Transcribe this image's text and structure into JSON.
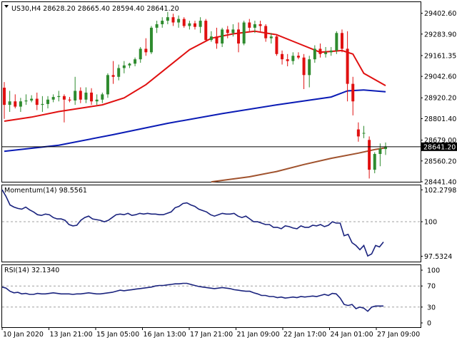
{
  "colors": {
    "background": "#ffffff",
    "bull": "#2e8b2e",
    "bear": "#e01010",
    "ema_fast": "#e01010",
    "ema_slow": "#0a1bb5",
    "ema_long": "#a0522d",
    "indicator": "#1a237e",
    "grid_dash": "#a0a0a0",
    "price_line": "#000000"
  },
  "chart_data": [
    {
      "type": "candlestick",
      "title": "US30,H4  28628.20 28665.40 28594.40 28641.20",
      "symbol": "US30,H4",
      "ohlc_header": "28628.20 28665.40 28594.40 28641.20",
      "current_price": "28641.20",
      "ylim": [
        28441.41,
        29466.0
      ],
      "y_ticks": [
        "29402.60",
        "29283.90",
        "29161.35",
        "29042.60",
        "28920.20",
        "28801.40",
        "28679.00",
        "28560.20",
        "28441.40"
      ],
      "x_tick_labels": [
        "10 Jan 2020",
        "13 Jan 21:00",
        "15 Jan 05:00",
        "16 Jan 13:00",
        "17 Jan 21:00",
        "21 Jan 09:00",
        "22 Jan 17:00",
        "24 Jan 01:00",
        "27 Jan 09:00"
      ],
      "candles": [
        {
          "o": 28978,
          "h": 29010,
          "l": 28800,
          "c": 28880
        },
        {
          "o": 28880,
          "h": 28960,
          "l": 28840,
          "c": 28900
        },
        {
          "o": 28900,
          "h": 28940,
          "l": 28860,
          "c": 28870
        },
        {
          "o": 28870,
          "h": 28920,
          "l": 28840,
          "c": 28900
        },
        {
          "o": 28900,
          "h": 28940,
          "l": 28880,
          "c": 28905
        },
        {
          "o": 28905,
          "h": 28935,
          "l": 28895,
          "c": 28915
        },
        {
          "o": 28915,
          "h": 28950,
          "l": 28850,
          "c": 28880
        },
        {
          "o": 28880,
          "h": 28930,
          "l": 28840,
          "c": 28885
        },
        {
          "o": 28885,
          "h": 28930,
          "l": 28860,
          "c": 28910
        },
        {
          "o": 28910,
          "h": 28940,
          "l": 28895,
          "c": 28925
        },
        {
          "o": 28925,
          "h": 28960,
          "l": 28900,
          "c": 28930
        },
        {
          "o": 28930,
          "h": 28940,
          "l": 28780,
          "c": 28910
        },
        {
          "o": 28910,
          "h": 28925,
          "l": 28895,
          "c": 28905
        },
        {
          "o": 28905,
          "h": 29040,
          "l": 28880,
          "c": 28960
        },
        {
          "o": 28960,
          "h": 28980,
          "l": 28890,
          "c": 28910
        },
        {
          "o": 28910,
          "h": 28980,
          "l": 28890,
          "c": 28950
        },
        {
          "o": 28950,
          "h": 28975,
          "l": 28880,
          "c": 28900
        },
        {
          "o": 28900,
          "h": 28940,
          "l": 28880,
          "c": 28910
        },
        {
          "o": 28910,
          "h": 28950,
          "l": 28890,
          "c": 28940
        },
        {
          "o": 28940,
          "h": 29060,
          "l": 28920,
          "c": 29050
        },
        {
          "o": 29050,
          "h": 29130,
          "l": 29000,
          "c": 29040
        },
        {
          "o": 29040,
          "h": 29110,
          "l": 29020,
          "c": 29090
        },
        {
          "o": 29090,
          "h": 29130,
          "l": 29060,
          "c": 29105
        },
        {
          "o": 29105,
          "h": 29120,
          "l": 29090,
          "c": 29115
        },
        {
          "o": 29115,
          "h": 29150,
          "l": 29100,
          "c": 29140
        },
        {
          "o": 29140,
          "h": 29210,
          "l": 29120,
          "c": 29200
        },
        {
          "o": 29200,
          "h": 29260,
          "l": 29160,
          "c": 29180
        },
        {
          "o": 29180,
          "h": 29330,
          "l": 29170,
          "c": 29320
        },
        {
          "o": 29320,
          "h": 29360,
          "l": 29290,
          "c": 29340
        },
        {
          "o": 29340,
          "h": 29380,
          "l": 29320,
          "c": 29360
        },
        {
          "o": 29360,
          "h": 29410,
          "l": 29340,
          "c": 29380
        },
        {
          "o": 29380,
          "h": 29400,
          "l": 29330,
          "c": 29350
        },
        {
          "o": 29350,
          "h": 29390,
          "l": 29320,
          "c": 29370
        },
        {
          "o": 29370,
          "h": 29380,
          "l": 29320,
          "c": 29330
        },
        {
          "o": 29330,
          "h": 29360,
          "l": 29310,
          "c": 29345
        },
        {
          "o": 29345,
          "h": 29360,
          "l": 29310,
          "c": 29325
        },
        {
          "o": 29325,
          "h": 29380,
          "l": 29290,
          "c": 29360
        },
        {
          "o": 29360,
          "h": 29370,
          "l": 29240,
          "c": 29250
        },
        {
          "o": 29250,
          "h": 29300,
          "l": 29240,
          "c": 29270
        },
        {
          "o": 29270,
          "h": 29320,
          "l": 29200,
          "c": 29230
        },
        {
          "o": 29230,
          "h": 29320,
          "l": 29210,
          "c": 29310
        },
        {
          "o": 29310,
          "h": 29330,
          "l": 29260,
          "c": 29290
        },
        {
          "o": 29290,
          "h": 29340,
          "l": 29270,
          "c": 29310
        },
        {
          "o": 29310,
          "h": 29350,
          "l": 29180,
          "c": 29230
        },
        {
          "o": 29230,
          "h": 29360,
          "l": 29220,
          "c": 29350
        },
        {
          "o": 29350,
          "h": 29370,
          "l": 29300,
          "c": 29320
        },
        {
          "o": 29320,
          "h": 29360,
          "l": 29290,
          "c": 29340
        },
        {
          "o": 29340,
          "h": 29360,
          "l": 29300,
          "c": 29330
        },
        {
          "o": 29330,
          "h": 29340,
          "l": 29240,
          "c": 29260
        },
        {
          "o": 29260,
          "h": 29290,
          "l": 29230,
          "c": 29270
        },
        {
          "o": 29270,
          "h": 29280,
          "l": 29160,
          "c": 29170
        },
        {
          "o": 29170,
          "h": 29190,
          "l": 29110,
          "c": 29140
        },
        {
          "o": 29140,
          "h": 29170,
          "l": 29100,
          "c": 29130
        },
        {
          "o": 29130,
          "h": 29180,
          "l": 29110,
          "c": 29160
        },
        {
          "o": 29160,
          "h": 29180,
          "l": 29140,
          "c": 29150
        },
        {
          "o": 29150,
          "h": 29170,
          "l": 28970,
          "c": 29050
        },
        {
          "o": 29050,
          "h": 29160,
          "l": 28980,
          "c": 29140
        },
        {
          "o": 29140,
          "h": 29220,
          "l": 29120,
          "c": 29200
        },
        {
          "o": 29200,
          "h": 29230,
          "l": 29150,
          "c": 29170
        },
        {
          "o": 29170,
          "h": 29210,
          "l": 29150,
          "c": 29180
        },
        {
          "o": 29180,
          "h": 29210,
          "l": 29160,
          "c": 29190
        },
        {
          "o": 29190,
          "h": 29300,
          "l": 29170,
          "c": 29290
        },
        {
          "o": 29290,
          "h": 29310,
          "l": 29180,
          "c": 29200
        },
        {
          "o": 29200,
          "h": 29300,
          "l": 28900,
          "c": 29000
        },
        {
          "o": 29000,
          "h": 29040,
          "l": 28820,
          "c": 28900
        },
        {
          "o": 28740,
          "h": 28780,
          "l": 28670,
          "c": 28700
        },
        {
          "o": 28720,
          "h": 28760,
          "l": 28690,
          "c": 28720
        },
        {
          "o": 28680,
          "h": 28700,
          "l": 28460,
          "c": 28510
        },
        {
          "o": 28510,
          "h": 28610,
          "l": 28490,
          "c": 28600
        },
        {
          "o": 28600,
          "h": 28660,
          "l": 28530,
          "c": 28630
        },
        {
          "o": 28628.2,
          "h": 28665.4,
          "l": 28594.4,
          "c": 28641.2
        }
      ],
      "moving_averages": [
        {
          "kind": "ema_fast",
          "points": [
            [
              0,
              28787
            ],
            [
              5,
              28810
            ],
            [
              10,
              28842
            ],
            [
              15,
              28866
            ],
            [
              18,
              28880
            ],
            [
              22,
              28920
            ],
            [
              26,
              28995
            ],
            [
              30,
              29095
            ],
            [
              34,
              29195
            ],
            [
              38,
              29260
            ],
            [
              42,
              29285
            ],
            [
              46,
              29300
            ],
            [
              50,
              29280
            ],
            [
              54,
              29230
            ],
            [
              58,
              29180
            ],
            [
              62,
              29190
            ],
            [
              64,
              29170
            ],
            [
              66,
              29060
            ],
            [
              70,
              28990
            ]
          ]
        },
        {
          "kind": "ema_slow",
          "points": [
            [
              0,
              28615
            ],
            [
              10,
              28650
            ],
            [
              20,
              28710
            ],
            [
              30,
              28775
            ],
            [
              40,
              28830
            ],
            [
              50,
              28880
            ],
            [
              60,
              28925
            ],
            [
              63,
              28960
            ],
            [
              66,
              28965
            ],
            [
              70,
              28955
            ]
          ]
        },
        {
          "kind": "ema_long",
          "points": [
            [
              38,
              28441
            ],
            [
              45,
              28470
            ],
            [
              50,
              28500
            ],
            [
              55,
              28540
            ],
            [
              60,
              28575
            ],
            [
              65,
              28605
            ],
            [
              68,
              28625
            ],
            [
              70,
              28635
            ]
          ]
        }
      ]
    },
    {
      "type": "line",
      "title": "Momentum(14) 98.5561",
      "name": "Momentum(14)",
      "value_label": "98.5561",
      "ylim": [
        97.2,
        102.5
      ],
      "y_ticks": [
        "102.2798",
        "100",
        "97.5324"
      ],
      "reference_level": 100,
      "values": [
        102.28,
        101.8,
        101.2,
        101.05,
        100.95,
        100.9,
        101.05,
        100.85,
        100.7,
        100.5,
        100.45,
        100.55,
        100.5,
        100.3,
        100.2,
        100.2,
        100.1,
        99.8,
        99.7,
        99.75,
        100.1,
        100.3,
        100.4,
        100.2,
        100.15,
        100.1,
        100.0,
        100.1,
        100.3,
        100.5,
        100.55,
        100.5,
        100.6,
        100.45,
        100.5,
        100.6,
        100.55,
        100.6,
        100.55,
        100.55,
        100.5,
        100.5,
        100.6,
        100.7,
        101.0,
        101.1,
        101.3,
        101.35,
        101.2,
        101.1,
        100.9,
        100.8,
        100.7,
        100.5,
        100.4,
        100.5,
        100.6,
        100.55,
        100.55,
        100.6,
        100.4,
        100.3,
        100.4,
        100.2,
        100.0,
        100.0,
        99.9,
        99.8,
        99.8,
        99.6,
        99.6,
        99.5,
        99.7,
        99.65,
        99.55,
        99.5,
        99.7,
        99.6,
        99.6,
        99.75,
        99.7,
        99.8,
        99.65,
        99.75,
        100.0,
        99.9,
        99.9,
        99.0,
        99.1,
        98.5,
        98.3,
        98.0,
        98.3,
        97.55,
        97.7,
        98.3,
        98.2,
        98.55
      ]
    },
    {
      "type": "line",
      "title": "RSI(14) 32.1340",
      "name": "RSI(14)",
      "value_label": "32.1340",
      "ylim": [
        0,
        100
      ],
      "y_ticks": [
        "100",
        "70",
        "30",
        "0"
      ],
      "levels": [
        70,
        30
      ],
      "values": [
        68,
        66,
        60,
        57,
        58,
        55,
        56,
        54,
        54,
        56,
        55,
        55,
        56,
        57,
        56,
        55,
        55,
        55,
        54,
        55,
        55,
        56,
        57,
        56,
        55,
        55,
        56,
        57,
        58,
        60,
        62,
        61,
        62,
        63,
        64,
        65,
        66,
        67,
        68,
        70,
        71,
        71,
        72,
        73,
        74,
        74,
        75,
        75,
        73,
        71,
        69,
        68,
        67,
        66,
        65,
        66,
        67,
        66,
        65,
        63,
        62,
        61,
        60,
        60,
        57,
        55,
        52,
        52,
        50,
        50,
        48,
        49,
        47,
        48,
        49,
        48,
        50,
        49,
        50,
        51,
        50,
        52,
        54,
        52,
        56,
        55,
        47,
        35,
        33,
        35,
        27,
        30,
        28,
        22,
        30,
        32,
        32,
        32
      ]
    }
  ]
}
